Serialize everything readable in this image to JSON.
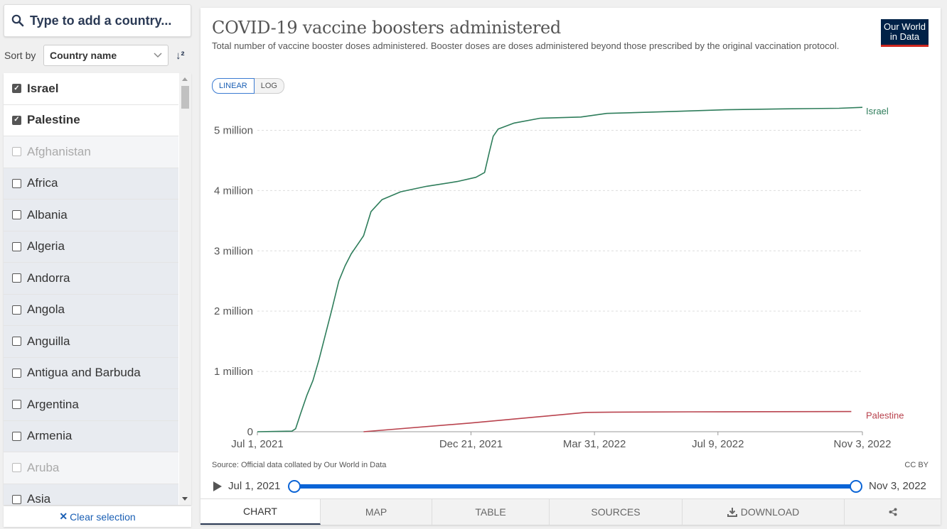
{
  "sidebar": {
    "search_placeholder": "Type to add a country...",
    "sort_label": "Sort by",
    "sort_value": "Country name",
    "sort_order_icon": "sort-descending-icon",
    "countries": [
      {
        "name": "Israel",
        "state": "selected"
      },
      {
        "name": "Palestine",
        "state": "selected"
      },
      {
        "name": "Afghanistan",
        "state": "disabled"
      },
      {
        "name": "Africa",
        "state": "unselected"
      },
      {
        "name": "Albania",
        "state": "unselected"
      },
      {
        "name": "Algeria",
        "state": "unselected"
      },
      {
        "name": "Andorra",
        "state": "unselected"
      },
      {
        "name": "Angola",
        "state": "unselected"
      },
      {
        "name": "Anguilla",
        "state": "unselected"
      },
      {
        "name": "Antigua and Barbuda",
        "state": "unselected"
      },
      {
        "name": "Argentina",
        "state": "unselected"
      },
      {
        "name": "Armenia",
        "state": "unselected"
      },
      {
        "name": "Aruba",
        "state": "disabled"
      },
      {
        "name": "Asia",
        "state": "unselected"
      }
    ],
    "clear_label": "Clear selection"
  },
  "header": {
    "title": "COVID-19 vaccine boosters administered",
    "subtitle": "Total number of vaccine booster doses administered. Booster doses are doses administered beyond those prescribed by the original vaccination protocol.",
    "logo_line1": "Our World",
    "logo_line2": "in Data"
  },
  "scale_toggle": {
    "linear": "LINEAR",
    "log": "LOG",
    "selected": "linear"
  },
  "footer": {
    "source": "Source: Official data collated by Our World in Data",
    "license": "CC BY"
  },
  "timeline": {
    "start_label": "Jul 1, 2021",
    "end_label": "Nov 3, 2022",
    "play_icon": "play-icon"
  },
  "tabs": [
    {
      "label": "CHART",
      "active": true
    },
    {
      "label": "MAP",
      "active": false
    },
    {
      "label": "TABLE",
      "active": false
    },
    {
      "label": "SOURCES",
      "active": false
    },
    {
      "label": "DOWNLOAD",
      "active": false,
      "icon": "download-icon"
    },
    {
      "label": "",
      "active": false,
      "icon": "share-icon"
    }
  ],
  "chart_data": {
    "type": "line",
    "title": "COVID-19 vaccine boosters administered",
    "xlabel": "",
    "ylabel": "",
    "xlim": [
      "2021-07-01",
      "2022-11-03"
    ],
    "ylim": [
      0,
      5500000
    ],
    "grid": true,
    "x_ticks": [
      {
        "date": "2021-07-01",
        "label": "Jul 1, 2021"
      },
      {
        "date": "2021-12-21",
        "label": "Dec 21, 2021"
      },
      {
        "date": "2022-03-31",
        "label": "Mar 31, 2022"
      },
      {
        "date": "2022-07-09",
        "label": "Jul 9, 2022"
      },
      {
        "date": "2022-11-03",
        "label": "Nov 3, 2022"
      }
    ],
    "y_ticks": [
      {
        "value": 0,
        "label": "0"
      },
      {
        "value": 1000000,
        "label": "1 million"
      },
      {
        "value": 2000000,
        "label": "2 million"
      },
      {
        "value": 3000000,
        "label": "3 million"
      },
      {
        "value": 4000000,
        "label": "4 million"
      },
      {
        "value": 5000000,
        "label": "5 million"
      }
    ],
    "series": [
      {
        "name": "Israel",
        "color": "#2e7d5b",
        "points": [
          [
            "2021-07-01",
            0
          ],
          [
            "2021-07-29",
            10000
          ],
          [
            "2021-08-01",
            50000
          ],
          [
            "2021-08-05",
            300000
          ],
          [
            "2021-08-10",
            600000
          ],
          [
            "2021-08-15",
            850000
          ],
          [
            "2021-08-20",
            1200000
          ],
          [
            "2021-08-25",
            1600000
          ],
          [
            "2021-08-30",
            2000000
          ],
          [
            "2021-09-05",
            2500000
          ],
          [
            "2021-09-10",
            2750000
          ],
          [
            "2021-09-15",
            2950000
          ],
          [
            "2021-09-20",
            3100000
          ],
          [
            "2021-09-25",
            3250000
          ],
          [
            "2021-10-01",
            3650000
          ],
          [
            "2021-10-10",
            3850000
          ],
          [
            "2021-10-25",
            3980000
          ],
          [
            "2021-11-15",
            4070000
          ],
          [
            "2021-12-10",
            4150000
          ],
          [
            "2021-12-25",
            4220000
          ],
          [
            "2022-01-01",
            4300000
          ],
          [
            "2022-01-05",
            4650000
          ],
          [
            "2022-01-08",
            4900000
          ],
          [
            "2022-01-12",
            5020000
          ],
          [
            "2022-01-25",
            5120000
          ],
          [
            "2022-02-15",
            5200000
          ],
          [
            "2022-03-20",
            5220000
          ],
          [
            "2022-04-10",
            5280000
          ],
          [
            "2022-06-01",
            5310000
          ],
          [
            "2022-07-15",
            5340000
          ],
          [
            "2022-09-01",
            5355000
          ],
          [
            "2022-10-15",
            5365000
          ],
          [
            "2022-11-03",
            5380000
          ]
        ]
      },
      {
        "name": "Palestine",
        "color": "#b9434e",
        "points": [
          [
            "2021-09-25",
            0
          ],
          [
            "2021-12-21",
            145000
          ],
          [
            "2022-03-24",
            320000
          ],
          [
            "2022-04-15",
            325000
          ],
          [
            "2022-06-15",
            330000
          ],
          [
            "2022-08-15",
            332000
          ],
          [
            "2022-10-25",
            335000
          ]
        ]
      }
    ]
  }
}
